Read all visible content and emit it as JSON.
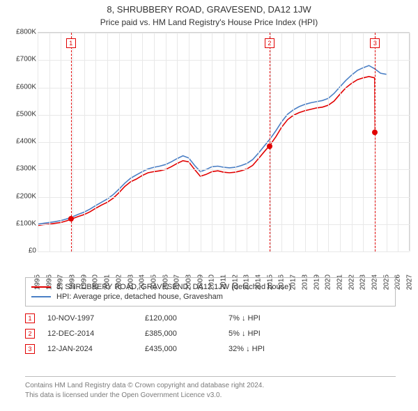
{
  "title": "8, SHRUBBERY ROAD, GRAVESEND, DA12 1JW",
  "subtitle": "Price paid vs. HM Land Registry's House Price Index (HPI)",
  "chart": {
    "type": "line",
    "background_color": "#ffffff",
    "grid_color": "#e8e8e8",
    "axis_color": "#d0d0d0",
    "text_color": "#333333",
    "label_fontsize": 10,
    "title_fontsize": 13,
    "subtitle_fontsize": 12,
    "x": {
      "min": 1995,
      "max": 2027,
      "ticks": [
        1995,
        1996,
        1997,
        1998,
        1999,
        2000,
        2001,
        2002,
        2003,
        2004,
        2005,
        2006,
        2007,
        2008,
        2009,
        2010,
        2011,
        2012,
        2013,
        2014,
        2015,
        2016,
        2017,
        2018,
        2019,
        2020,
        2021,
        2022,
        2023,
        2024,
        2025,
        2026,
        2027
      ],
      "tick_rotation_deg": -90
    },
    "y": {
      "min": 0,
      "max": 800000,
      "ticks": [
        0,
        100000,
        200000,
        300000,
        400000,
        500000,
        600000,
        700000,
        800000
      ],
      "tick_labels": [
        "£0",
        "£100K",
        "£200K",
        "£300K",
        "£400K",
        "£500K",
        "£600K",
        "£700K",
        "£800K"
      ]
    },
    "series": [
      {
        "name": "price_paid",
        "label": "8, SHRUBBERY ROAD, GRAVESEND, DA12 1JW (detached house)",
        "color": "#e10000",
        "line_width": 1.6,
        "points": [
          [
            1995.0,
            95000
          ],
          [
            1995.5,
            98000
          ],
          [
            1996.0,
            100000
          ],
          [
            1996.5,
            103000
          ],
          [
            1997.0,
            106000
          ],
          [
            1997.5,
            112000
          ],
          [
            1998.0,
            120000
          ],
          [
            1998.5,
            128000
          ],
          [
            1999.0,
            135000
          ],
          [
            1999.5,
            145000
          ],
          [
            2000.0,
            158000
          ],
          [
            2000.5,
            170000
          ],
          [
            2001.0,
            180000
          ],
          [
            2001.5,
            195000
          ],
          [
            2002.0,
            215000
          ],
          [
            2002.5,
            238000
          ],
          [
            2003.0,
            255000
          ],
          [
            2003.5,
            265000
          ],
          [
            2004.0,
            278000
          ],
          [
            2004.5,
            288000
          ],
          [
            2005.0,
            292000
          ],
          [
            2005.5,
            295000
          ],
          [
            2006.0,
            300000
          ],
          [
            2006.5,
            310000
          ],
          [
            2007.0,
            322000
          ],
          [
            2007.5,
            332000
          ],
          [
            2008.0,
            328000
          ],
          [
            2008.5,
            300000
          ],
          [
            2009.0,
            275000
          ],
          [
            2009.5,
            282000
          ],
          [
            2010.0,
            292000
          ],
          [
            2010.5,
            295000
          ],
          [
            2011.0,
            290000
          ],
          [
            2011.5,
            288000
          ],
          [
            2012.0,
            290000
          ],
          [
            2012.5,
            295000
          ],
          [
            2013.0,
            302000
          ],
          [
            2013.5,
            315000
          ],
          [
            2014.0,
            340000
          ],
          [
            2014.5,
            365000
          ],
          [
            2015.0,
            390000
          ],
          [
            2015.5,
            420000
          ],
          [
            2016.0,
            455000
          ],
          [
            2016.5,
            482000
          ],
          [
            2017.0,
            498000
          ],
          [
            2017.5,
            508000
          ],
          [
            2018.0,
            515000
          ],
          [
            2018.5,
            520000
          ],
          [
            2019.0,
            525000
          ],
          [
            2019.5,
            528000
          ],
          [
            2020.0,
            535000
          ],
          [
            2020.5,
            550000
          ],
          [
            2021.0,
            575000
          ],
          [
            2021.5,
            598000
          ],
          [
            2022.0,
            615000
          ],
          [
            2022.5,
            628000
          ],
          [
            2023.0,
            635000
          ],
          [
            2023.5,
            640000
          ],
          [
            2024.0,
            635000
          ],
          [
            2024.03,
            435000
          ]
        ]
      },
      {
        "name": "hpi",
        "label": "HPI: Average price, detached house, Gravesham",
        "color": "#4a7fc5",
        "line_width": 1.6,
        "points": [
          [
            1995.0,
            100000
          ],
          [
            1995.5,
            103000
          ],
          [
            1996.0,
            106000
          ],
          [
            1996.5,
            109000
          ],
          [
            1997.0,
            113000
          ],
          [
            1997.5,
            119000
          ],
          [
            1998.0,
            127000
          ],
          [
            1998.5,
            136000
          ],
          [
            1999.0,
            144000
          ],
          [
            1999.5,
            155000
          ],
          [
            2000.0,
            168000
          ],
          [
            2000.5,
            180000
          ],
          [
            2001.0,
            192000
          ],
          [
            2001.5,
            208000
          ],
          [
            2002.0,
            228000
          ],
          [
            2002.5,
            250000
          ],
          [
            2003.0,
            268000
          ],
          [
            2003.5,
            280000
          ],
          [
            2004.0,
            292000
          ],
          [
            2004.5,
            302000
          ],
          [
            2005.0,
            308000
          ],
          [
            2005.5,
            312000
          ],
          [
            2006.0,
            318000
          ],
          [
            2006.5,
            328000
          ],
          [
            2007.0,
            340000
          ],
          [
            2007.5,
            350000
          ],
          [
            2008.0,
            342000
          ],
          [
            2008.5,
            315000
          ],
          [
            2009.0,
            292000
          ],
          [
            2009.5,
            300000
          ],
          [
            2010.0,
            310000
          ],
          [
            2010.5,
            312000
          ],
          [
            2011.0,
            308000
          ],
          [
            2011.5,
            306000
          ],
          [
            2012.0,
            308000
          ],
          [
            2012.5,
            314000
          ],
          [
            2013.0,
            322000
          ],
          [
            2013.5,
            336000
          ],
          [
            2014.0,
            360000
          ],
          [
            2014.5,
            386000
          ],
          [
            2015.0,
            412000
          ],
          [
            2015.5,
            442000
          ],
          [
            2016.0,
            475000
          ],
          [
            2016.5,
            502000
          ],
          [
            2017.0,
            518000
          ],
          [
            2017.5,
            530000
          ],
          [
            2018.0,
            538000
          ],
          [
            2018.5,
            544000
          ],
          [
            2019.0,
            548000
          ],
          [
            2019.5,
            552000
          ],
          [
            2020.0,
            560000
          ],
          [
            2020.5,
            578000
          ],
          [
            2021.0,
            602000
          ],
          [
            2021.5,
            625000
          ],
          [
            2022.0,
            645000
          ],
          [
            2022.5,
            662000
          ],
          [
            2023.0,
            672000
          ],
          [
            2023.5,
            680000
          ],
          [
            2024.0,
            668000
          ],
          [
            2024.5,
            652000
          ],
          [
            2025.0,
            648000
          ]
        ]
      }
    ],
    "markers": [
      {
        "n": "1",
        "x": 1997.86,
        "y": 120000,
        "box_color": "#e10000"
      },
      {
        "n": "2",
        "x": 2014.95,
        "y": 385000,
        "box_color": "#e10000"
      },
      {
        "n": "3",
        "x": 2024.03,
        "y": 435000,
        "box_color": "#e10000"
      }
    ],
    "marker_vline_color": "#e10000",
    "marker_dot_color": "#e10000",
    "marker_dot_size": 8
  },
  "legend": {
    "border_color": "#bcbcbc",
    "fontsize": 11
  },
  "sales": [
    {
      "n": "1",
      "date": "10-NOV-1997",
      "price": "£120,000",
      "diff": "7% ↓ HPI",
      "box_color": "#e10000"
    },
    {
      "n": "2",
      "date": "12-DEC-2014",
      "price": "£385,000",
      "diff": "5% ↓ HPI",
      "box_color": "#e10000"
    },
    {
      "n": "3",
      "date": "12-JAN-2024",
      "price": "£435,000",
      "diff": "32% ↓ HPI",
      "box_color": "#e10000"
    }
  ],
  "attribution": {
    "line1": "Contains HM Land Registry data © Crown copyright and database right 2024.",
    "line2": "This data is licensed under the Open Government Licence v3.0.",
    "color": "#7a7a7a",
    "fontsize": 10
  }
}
